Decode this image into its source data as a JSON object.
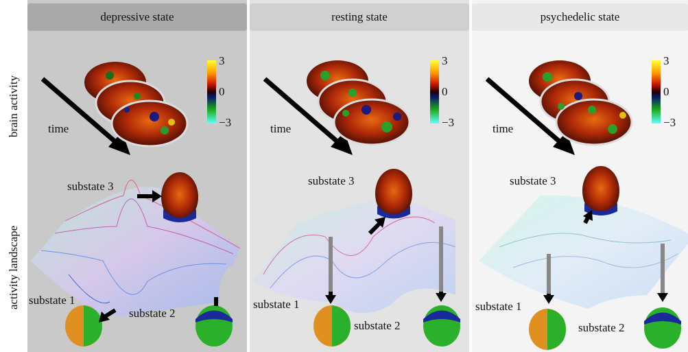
{
  "row_labels": {
    "top": "brain activity",
    "bottom": "activity landscape"
  },
  "panels": [
    {
      "title": "depressive state",
      "time_label": "time",
      "substate_top": "substate 3",
      "substate_left": "substate 1",
      "substate_right": "substate 2"
    },
    {
      "title": "resting state",
      "time_label": "time",
      "substate_top": "substate 3",
      "substate_left": "substate 1",
      "substate_right": "substate 2"
    },
    {
      "title": "psychedelic state",
      "time_label": "time",
      "substate_top": "substate 3",
      "substate_left": "substate 1",
      "substate_right": "substate 2"
    }
  ],
  "colorscale": {
    "max": "3",
    "mid": "0",
    "min": "−3"
  },
  "colors": {
    "depressive_bg": "#c9c9c9",
    "resting_bg": "#e3e3e3",
    "psychedelic_bg": "#f4f4f4",
    "header_dark": "#a9a9a9",
    "header_mid": "#d0d0d0",
    "header_light": "#e8e8e8"
  }
}
